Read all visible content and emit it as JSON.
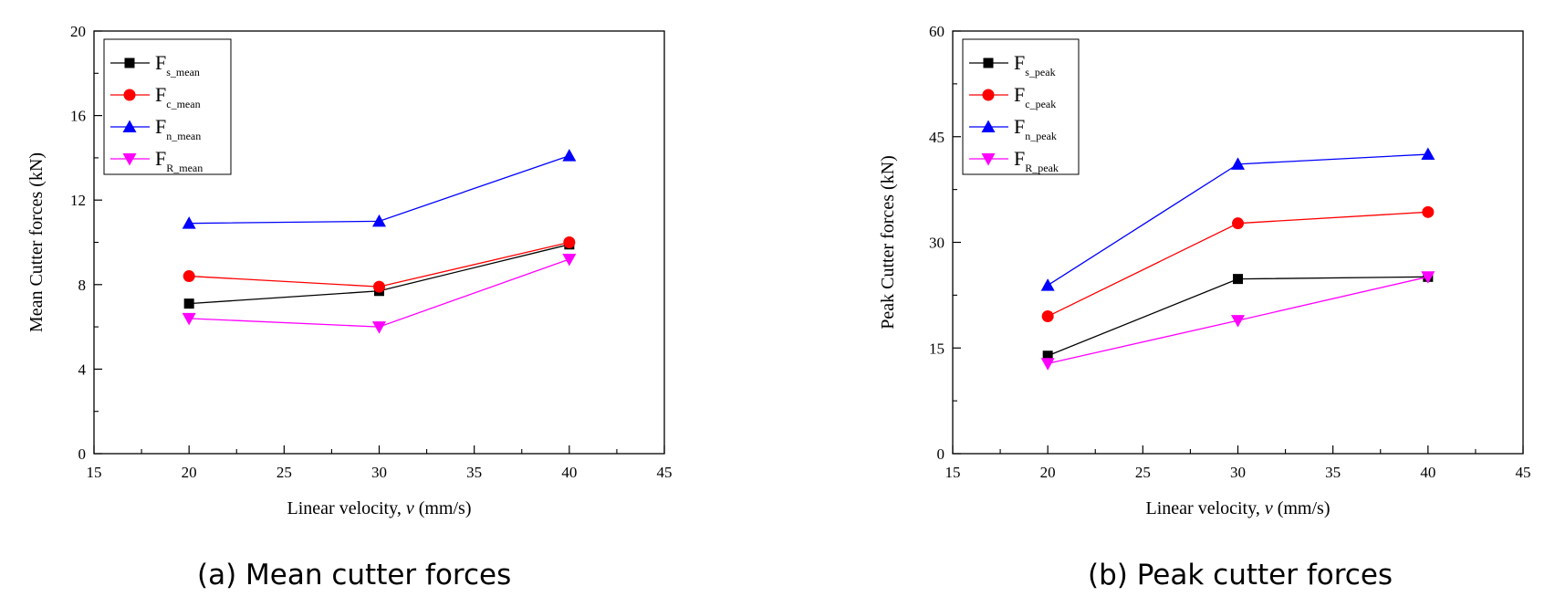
{
  "chart_data": [
    {
      "type": "line",
      "caption": "(a) Mean cutter forces",
      "xlabel": "Linear velocity, ",
      "xlabel_var": "v",
      "xlabel_unit": " (mm/s)",
      "ylabel": "Mean Cutter forces (kN)",
      "xlim": [
        15,
        45
      ],
      "ylim": [
        0,
        20
      ],
      "xticks": [
        15,
        20,
        25,
        30,
        35,
        40,
        45
      ],
      "yticks": [
        0,
        4,
        8,
        12,
        16,
        20
      ],
      "x": [
        20,
        30,
        40
      ],
      "legend_position": "top-left",
      "series": [
        {
          "name": "F",
          "sub": "s_mean",
          "color": "#000000",
          "marker": "square",
          "values": [
            7.1,
            7.7,
            9.9
          ]
        },
        {
          "name": "F",
          "sub": "c_mean",
          "color": "#ff0000",
          "marker": "circle",
          "values": [
            8.4,
            7.9,
            10.0
          ]
        },
        {
          "name": "F",
          "sub": "n_mean",
          "color": "#0000ff",
          "marker": "triangle-up",
          "values": [
            10.9,
            11.0,
            14.1
          ]
        },
        {
          "name": "F",
          "sub": "R_mean",
          "color": "#ff00ff",
          "marker": "triangle-down",
          "values": [
            6.4,
            6.0,
            9.2
          ]
        }
      ]
    },
    {
      "type": "line",
      "caption": "(b) Peak cutter forces",
      "xlabel": "Linear velocity, ",
      "xlabel_var": "v",
      "xlabel_unit": " (mm/s)",
      "ylabel": "Peak Cutter forces (kN)",
      "xlim": [
        15,
        45
      ],
      "ylim": [
        0,
        60
      ],
      "xticks": [
        15,
        20,
        25,
        30,
        35,
        40,
        45
      ],
      "yticks": [
        0,
        15,
        30,
        45,
        60
      ],
      "x": [
        20,
        30,
        40
      ],
      "legend_position": "top-left",
      "series": [
        {
          "name": "F",
          "sub": "s_peak",
          "color": "#000000",
          "marker": "square",
          "values": [
            13.9,
            24.8,
            25.1
          ]
        },
        {
          "name": "F",
          "sub": "c_peak",
          "color": "#ff0000",
          "marker": "circle",
          "values": [
            19.5,
            32.7,
            34.3
          ]
        },
        {
          "name": "F",
          "sub": "n_peak",
          "color": "#0000ff",
          "marker": "triangle-up",
          "values": [
            23.9,
            41.1,
            42.5
          ]
        },
        {
          "name": "F",
          "sub": "R_peak",
          "color": "#ff00ff",
          "marker": "triangle-down",
          "values": [
            12.8,
            18.9,
            25.1
          ]
        }
      ]
    }
  ]
}
